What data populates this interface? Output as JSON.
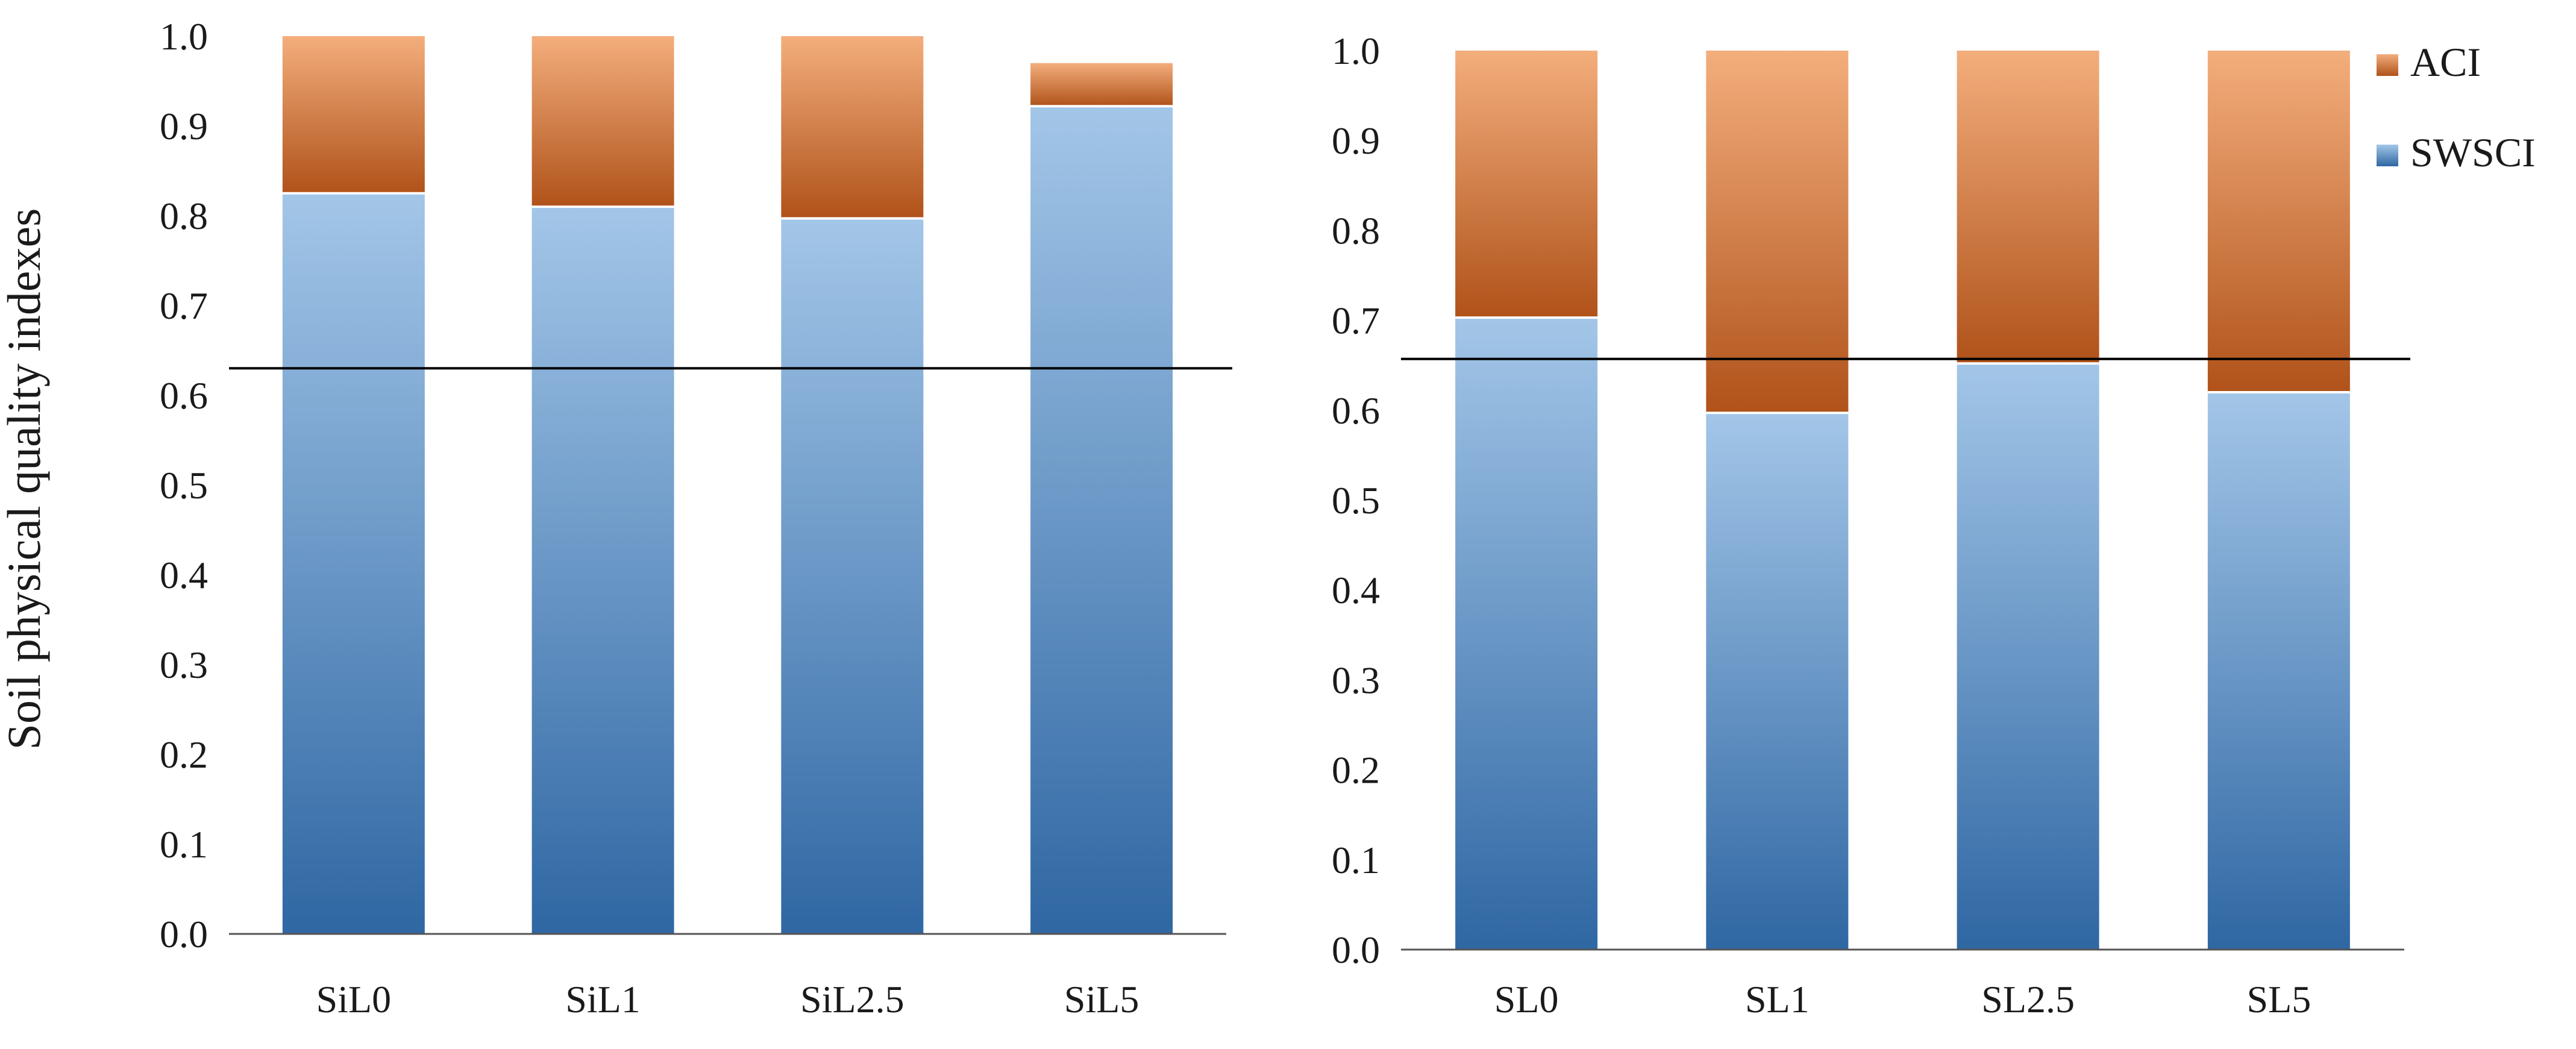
{
  "chart_data": [
    {
      "type": "bar",
      "stacked": true,
      "ylabel": "Soil physical quality indexes",
      "xlabel": "",
      "ylim": [
        0,
        1.0
      ],
      "yticks": [
        "0.0",
        "0.1",
        "0.2",
        "0.3",
        "0.4",
        "0.5",
        "0.6",
        "0.7",
        "0.8",
        "0.9",
        "1.0"
      ],
      "categories": [
        "SiL0",
        "SiL1",
        "SiL2.5",
        "SiL5"
      ],
      "series": [
        {
          "name": "SWSCI",
          "values": [
            0.825,
            0.81,
            0.797,
            0.922
          ]
        },
        {
          "name": "ACI",
          "values": [
            0.175,
            0.19,
            0.203,
            0.048
          ]
        }
      ],
      "reference_line": 0.63
    },
    {
      "type": "bar",
      "stacked": true,
      "ylabel": "",
      "xlabel": "",
      "ylim": [
        0,
        1.0
      ],
      "yticks": [
        "0.0",
        "0.1",
        "0.2",
        "0.3",
        "0.4",
        "0.5",
        "0.6",
        "0.7",
        "0.8",
        "0.9",
        "1.0"
      ],
      "categories": [
        "SL0",
        "SL1",
        "SL2.5",
        "SL5"
      ],
      "series": [
        {
          "name": "SWSCI",
          "values": [
            0.703,
            0.597,
            0.652,
            0.62
          ]
        },
        {
          "name": "ACI",
          "values": [
            0.297,
            0.403,
            0.348,
            0.38
          ]
        }
      ],
      "reference_line": 0.657
    }
  ],
  "legend": {
    "position": "top-right",
    "entries": [
      "ACI",
      "SWSCI"
    ]
  },
  "colors": {
    "swsci_light": "#a3c6e8",
    "swsci_dark": "#2f67a3",
    "aci_light": "#f3ae7c",
    "aci_dark": "#b0521a",
    "axis": "#555555",
    "reference_line": "#000000"
  }
}
